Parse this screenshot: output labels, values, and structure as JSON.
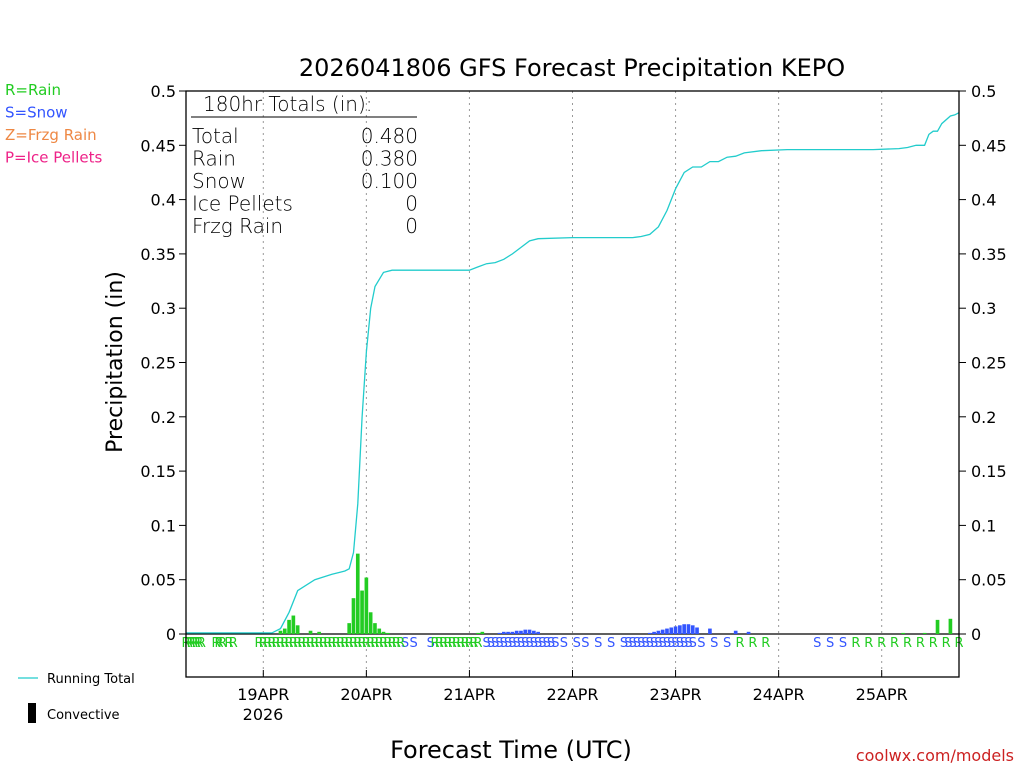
{
  "chart_data": {
    "type": "bar",
    "title": "2026041806 GFS Forecast Precipitation KEPO",
    "ylabel": "Precipitation  (in)",
    "xlabel": "Forecast Time (UTC)",
    "ylim": [
      0,
      0.5
    ],
    "y_ticks": [
      0,
      0.05,
      0.1,
      0.15,
      0.2,
      0.25,
      0.3,
      0.35,
      0.4,
      0.45,
      0.5
    ],
    "y_tick_labels": [
      "0",
      "0.05",
      "0.1",
      "0.15",
      "0.2",
      "0.25",
      "0.3",
      "0.35",
      "0.4",
      "0.45",
      "0.5"
    ],
    "xlim_hours": [
      0,
      180
    ],
    "x_ticks": [
      {
        "hour": 18,
        "label": "19APR"
      },
      {
        "hour": 42,
        "label": "20APR"
      },
      {
        "hour": 66,
        "label": "21APR"
      },
      {
        "hour": 90,
        "label": "22APR"
      },
      {
        "hour": 114,
        "label": "23APR"
      },
      {
        "hour": 138,
        "label": "24APR"
      },
      {
        "hour": 162,
        "label": "25APR"
      }
    ],
    "year_label": "2026",
    "precip_type_legend": [
      {
        "label": "R=Rain",
        "color": "#22cc22"
      },
      {
        "label": "S=Snow",
        "color": "#3355ff"
      },
      {
        "label": "Z=Frzg Rain",
        "color": "#ee8844"
      },
      {
        "label": "P=Ice Pellets",
        "color": "#ee2288"
      }
    ],
    "totals": {
      "heading": "180hr Totals (in):",
      "rows": [
        {
          "label": "Total",
          "value": "0.480"
        },
        {
          "label": "Rain",
          "value": "0.380"
        },
        {
          "label": "Snow",
          "value": "0.100"
        },
        {
          "label": "Ice Pellets",
          "value": "0"
        },
        {
          "label": "Frzg Rain",
          "value": "0"
        }
      ]
    },
    "running_total": {
      "name": "Running Total",
      "color": "#22cccc",
      "hours": [
        0,
        20,
        22,
        24,
        26,
        30,
        34,
        36,
        37,
        38,
        39,
        40,
        41,
        42,
        43,
        44,
        46,
        48,
        50,
        52,
        54,
        66,
        68,
        70,
        72,
        74,
        76,
        78,
        80,
        82,
        90,
        104,
        106,
        108,
        110,
        112,
        114,
        116,
        118,
        120,
        122,
        124,
        126,
        128,
        130,
        134,
        140,
        150,
        160,
        166,
        168,
        170,
        172,
        173,
        174,
        175,
        176,
        178,
        179,
        180
      ],
      "values": [
        0.001,
        0.001,
        0.005,
        0.02,
        0.04,
        0.05,
        0.055,
        0.057,
        0.058,
        0.06,
        0.075,
        0.12,
        0.2,
        0.26,
        0.3,
        0.32,
        0.333,
        0.335,
        0.335,
        0.335,
        0.335,
        0.335,
        0.338,
        0.341,
        0.342,
        0.345,
        0.35,
        0.356,
        0.362,
        0.364,
        0.365,
        0.365,
        0.366,
        0.368,
        0.375,
        0.39,
        0.41,
        0.425,
        0.43,
        0.43,
        0.435,
        0.435,
        0.439,
        0.44,
        0.443,
        0.445,
        0.446,
        0.446,
        0.446,
        0.447,
        0.448,
        0.45,
        0.45,
        0.46,
        0.463,
        0.463,
        0.47,
        0.477,
        0.478,
        0.48
      ]
    },
    "series": [
      {
        "name": "Rain",
        "color": "#22cc22",
        "hours": [
          22,
          23,
          24,
          25,
          26,
          29,
          31,
          38,
          39,
          40,
          41,
          42,
          43,
          44,
          45,
          46,
          47,
          68,
          69,
          167,
          172,
          175,
          178
        ],
        "values": [
          0.003,
          0.005,
          0.013,
          0.017,
          0.008,
          0.003,
          0.002,
          0.01,
          0.033,
          0.074,
          0.04,
          0.052,
          0.02,
          0.01,
          0.005,
          0.002,
          0.001,
          0.001,
          0.002,
          0.001,
          0.001,
          0.013,
          0.014
        ]
      },
      {
        "name": "Snow",
        "color": "#3355ff",
        "hours": [
          73,
          74,
          75,
          76,
          77,
          78,
          79,
          80,
          81,
          82,
          108,
          109,
          110,
          111,
          112,
          113,
          114,
          115,
          116,
          117,
          118,
          119,
          122,
          128,
          131
        ],
        "values": [
          0.001,
          0.002,
          0.002,
          0.002,
          0.003,
          0.003,
          0.004,
          0.004,
          0.003,
          0.002,
          0.001,
          0.002,
          0.003,
          0.004,
          0.005,
          0.006,
          0.007,
          0.008,
          0.009,
          0.009,
          0.008,
          0.006,
          0.005,
          0.003,
          0.002
        ]
      }
    ],
    "type_markers": {
      "row1": [
        {
          "hour": 0,
          "t": "R"
        },
        {
          "hour": 1.2,
          "t": "R"
        },
        {
          "hour": 2.4,
          "t": "R"
        },
        {
          "hour": 3.6,
          "t": "R"
        },
        {
          "hour": 7,
          "t": "R"
        },
        {
          "hour": 8.5,
          "t": "R"
        },
        {
          "hour": 11,
          "t": "R"
        },
        {
          "hour": 17,
          "t": "R"
        },
        {
          "hour": 19,
          "t": "R"
        },
        {
          "hour": 21,
          "t": "R"
        },
        {
          "hour": 23,
          "t": "R"
        },
        {
          "hour": 25,
          "t": "R"
        },
        {
          "hour": 27,
          "t": "R"
        },
        {
          "hour": 29,
          "t": "R"
        },
        {
          "hour": 31,
          "t": "R"
        },
        {
          "hour": 33,
          "t": "R"
        },
        {
          "hour": 35,
          "t": "R"
        },
        {
          "hour": 37,
          "t": "R"
        },
        {
          "hour": 39,
          "t": "R"
        },
        {
          "hour": 41,
          "t": "R"
        },
        {
          "hour": 43,
          "t": "R"
        },
        {
          "hour": 45,
          "t": "R"
        },
        {
          "hour": 47,
          "t": "R"
        },
        {
          "hour": 49,
          "t": "R"
        },
        {
          "hour": 51,
          "t": "S"
        },
        {
          "hour": 53,
          "t": "S"
        },
        {
          "hour": 57,
          "t": "S"
        },
        {
          "hour": 58,
          "t": "R"
        },
        {
          "hour": 60,
          "t": "R"
        },
        {
          "hour": 62,
          "t": "R"
        },
        {
          "hour": 64,
          "t": "R"
        },
        {
          "hour": 66,
          "t": "R"
        },
        {
          "hour": 68,
          "t": "R"
        },
        {
          "hour": 70,
          "t": "S"
        },
        {
          "hour": 72,
          "t": "S"
        },
        {
          "hour": 74,
          "t": "S"
        },
        {
          "hour": 76,
          "t": "S"
        },
        {
          "hour": 78,
          "t": "S"
        },
        {
          "hour": 80,
          "t": "S"
        },
        {
          "hour": 82,
          "t": "S"
        },
        {
          "hour": 84,
          "t": "S"
        },
        {
          "hour": 86,
          "t": "S"
        },
        {
          "hour": 88,
          "t": "S"
        },
        {
          "hour": 91,
          "t": "S"
        },
        {
          "hour": 93,
          "t": "S"
        },
        {
          "hour": 96,
          "t": "S"
        },
        {
          "hour": 99,
          "t": "S"
        },
        {
          "hour": 102,
          "t": "S"
        },
        {
          "hour": 104,
          "t": "S"
        },
        {
          "hour": 106,
          "t": "S"
        },
        {
          "hour": 108,
          "t": "S"
        },
        {
          "hour": 110,
          "t": "S"
        },
        {
          "hour": 112,
          "t": "S"
        },
        {
          "hour": 114,
          "t": "S"
        },
        {
          "hour": 116,
          "t": "S"
        },
        {
          "hour": 118,
          "t": "S"
        },
        {
          "hour": 120,
          "t": "S"
        },
        {
          "hour": 123,
          "t": "S"
        },
        {
          "hour": 126,
          "t": "S"
        },
        {
          "hour": 129,
          "t": "R"
        },
        {
          "hour": 132,
          "t": "R"
        },
        {
          "hour": 135,
          "t": "R"
        },
        {
          "hour": 147,
          "t": "S"
        },
        {
          "hour": 150,
          "t": "S"
        },
        {
          "hour": 153,
          "t": "S"
        },
        {
          "hour": 156,
          "t": "R"
        },
        {
          "hour": 159,
          "t": "R"
        },
        {
          "hour": 162,
          "t": "R"
        },
        {
          "hour": 165,
          "t": "R"
        },
        {
          "hour": 168,
          "t": "R"
        },
        {
          "hour": 171,
          "t": "R"
        },
        {
          "hour": 174,
          "t": "R"
        },
        {
          "hour": 177,
          "t": "R"
        },
        {
          "hour": 180,
          "t": "R"
        }
      ],
      "row2": [
        {
          "hour": 0.6,
          "t": "R"
        },
        {
          "hour": 1.8,
          "t": "R"
        },
        {
          "hour": 3,
          "t": "R"
        },
        {
          "hour": 7.7,
          "t": "R"
        },
        {
          "hour": 10,
          "t": "R"
        },
        {
          "hour": 18,
          "t": "R"
        },
        {
          "hour": 20,
          "t": "R"
        },
        {
          "hour": 22,
          "t": "R"
        },
        {
          "hour": 24,
          "t": "R"
        },
        {
          "hour": 26,
          "t": "R"
        },
        {
          "hour": 28,
          "t": "R"
        },
        {
          "hour": 30,
          "t": "R"
        },
        {
          "hour": 32,
          "t": "R"
        },
        {
          "hour": 34,
          "t": "R"
        },
        {
          "hour": 36,
          "t": "R"
        },
        {
          "hour": 38,
          "t": "R"
        },
        {
          "hour": 40,
          "t": "R"
        },
        {
          "hour": 42,
          "t": "R"
        },
        {
          "hour": 44,
          "t": "R"
        },
        {
          "hour": 46,
          "t": "R"
        },
        {
          "hour": 48,
          "t": "R"
        },
        {
          "hour": 50,
          "t": "R"
        },
        {
          "hour": 59,
          "t": "R"
        },
        {
          "hour": 61,
          "t": "R"
        },
        {
          "hour": 63,
          "t": "R"
        },
        {
          "hour": 65,
          "t": "R"
        },
        {
          "hour": 67,
          "t": "R"
        },
        {
          "hour": 71,
          "t": "S"
        },
        {
          "hour": 73,
          "t": "S"
        },
        {
          "hour": 75,
          "t": "S"
        },
        {
          "hour": 77,
          "t": "S"
        },
        {
          "hour": 79,
          "t": "S"
        },
        {
          "hour": 81,
          "t": "S"
        },
        {
          "hour": 83,
          "t": "S"
        },
        {
          "hour": 85,
          "t": "S"
        },
        {
          "hour": 103,
          "t": "S"
        },
        {
          "hour": 105,
          "t": "S"
        },
        {
          "hour": 107,
          "t": "S"
        },
        {
          "hour": 109,
          "t": "S"
        },
        {
          "hour": 111,
          "t": "S"
        },
        {
          "hour": 113,
          "t": "S"
        },
        {
          "hour": 115,
          "t": "S"
        },
        {
          "hour": 117,
          "t": "S"
        }
      ]
    },
    "legend": [
      {
        "label": "Running Total",
        "kind": "line",
        "color": "#22cccc"
      },
      {
        "label": "Convective",
        "kind": "bar",
        "color": "#000000"
      }
    ],
    "credit": "coolwx.com/models"
  }
}
